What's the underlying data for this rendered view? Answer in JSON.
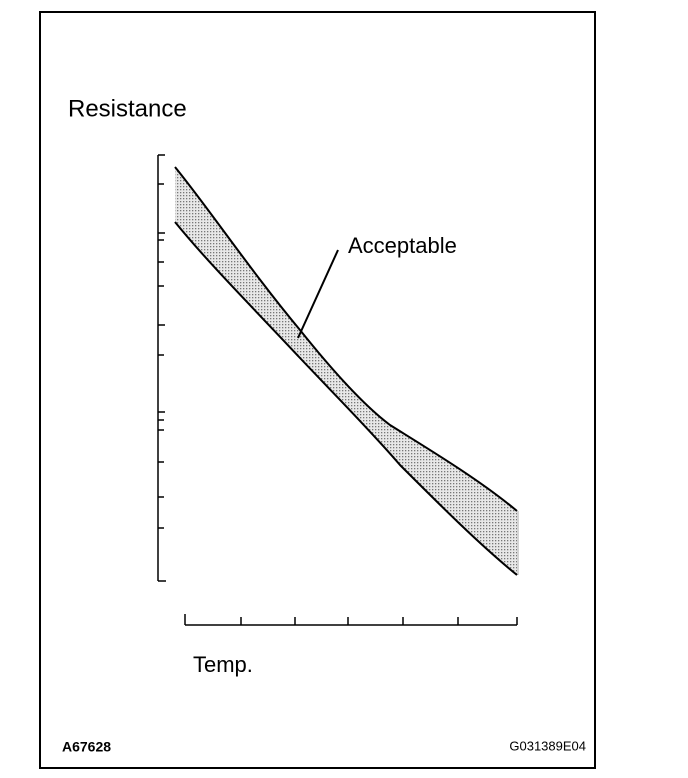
{
  "diagram": {
    "y_axis_label": "Resistance",
    "x_axis_label": "Temp.",
    "band_label": "Acceptable",
    "figure_id": "A67628",
    "figure_code": "G031389E04"
  }
}
